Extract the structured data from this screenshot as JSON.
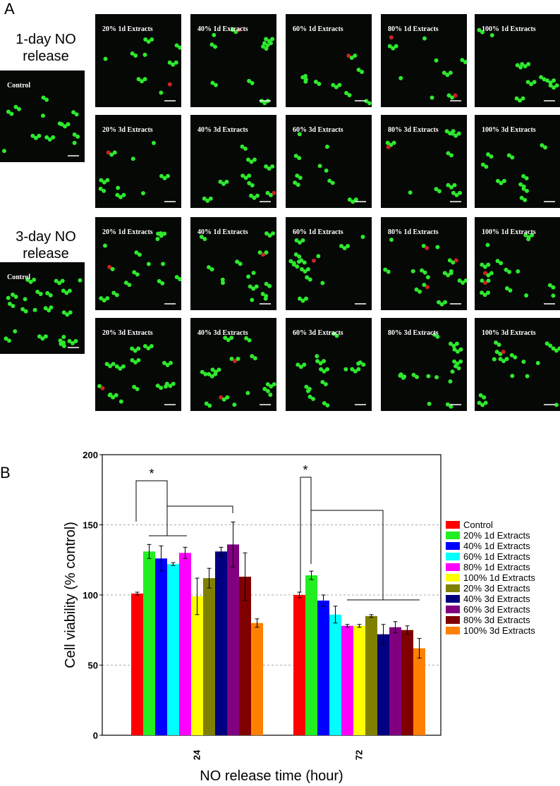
{
  "panel_a": {
    "label": "A",
    "groups": [
      {
        "label": "1-day NO release",
        "control_label": "Control",
        "rows": [
          [
            "20% 1d Extracts",
            "40% 1d Extracts",
            "60% 1d Extracts",
            "80% 1d Extracts",
            "100% 1d Extracts"
          ],
          [
            "20% 3d Extracts",
            "40% 3d Extracts",
            "60% 3d Extracts",
            "80% 3d Extracts",
            "100% 3d Extracts"
          ]
        ]
      },
      {
        "label": "3-day NO release",
        "control_label": "Control",
        "rows": [
          [
            "20% 1d Extracts",
            "40% 1d Extracts",
            "60% 1d Extracts",
            "80% 1d Extracts",
            "100% 1d Extracts"
          ],
          [
            "20% 3d Extracts",
            "40% 3d Extracts",
            "60% 3d Extracts",
            "80% 3d Extracts",
            "100% 3d Extracts"
          ]
        ]
      }
    ]
  },
  "panel_b": {
    "label": "B"
  },
  "chart_data": {
    "type": "bar",
    "xlabel": "NO release time (hour)",
    "ylabel": "Cell viability (% control)",
    "categories": [
      "24",
      "72"
    ],
    "ylim": [
      0,
      200
    ],
    "yticks": [
      0,
      50,
      100,
      150,
      200
    ],
    "grid": true,
    "legend": "right",
    "annotations": [
      "*",
      "*"
    ],
    "series": [
      {
        "name": "Control",
        "color": "#ff0000",
        "values": [
          101,
          100
        ],
        "errors": [
          1,
          2
        ]
      },
      {
        "name": "20% 1d Extracts",
        "color": "#22ee22",
        "values": [
          131,
          114
        ],
        "errors": [
          5,
          3
        ]
      },
      {
        "name": "40% 1d Extracts",
        "color": "#0000ff",
        "values": [
          126,
          96
        ],
        "errors": [
          9,
          4
        ]
      },
      {
        "name": "60% 1d Extracts",
        "color": "#00ffff",
        "values": [
          122,
          86
        ],
        "errors": [
          1,
          6
        ]
      },
      {
        "name": "80% 1d Extracts",
        "color": "#ff00ff",
        "values": [
          130,
          78
        ],
        "errors": [
          4,
          1
        ]
      },
      {
        "name": "100% 1d Extracts",
        "color": "#ffff00",
        "values": [
          99,
          78
        ],
        "errors": [
          13,
          1
        ]
      },
      {
        "name": "20% 3d Extracts",
        "color": "#808000",
        "values": [
          112,
          85
        ],
        "errors": [
          7,
          1
        ]
      },
      {
        "name": "40% 3d Extracts",
        "color": "#000080",
        "values": [
          131,
          72
        ],
        "errors": [
          3,
          7
        ]
      },
      {
        "name": "60% 3d Extracts",
        "color": "#800080",
        "values": [
          136,
          77
        ],
        "errors": [
          16,
          4
        ]
      },
      {
        "name": "80% 3d Extracts",
        "color": "#800000",
        "values": [
          113,
          75
        ],
        "errors": [
          17,
          3
        ]
      },
      {
        "name": "100% 3d Extracts",
        "color": "#ff8000",
        "values": [
          80,
          62
        ],
        "errors": [
          3,
          7
        ]
      }
    ]
  }
}
